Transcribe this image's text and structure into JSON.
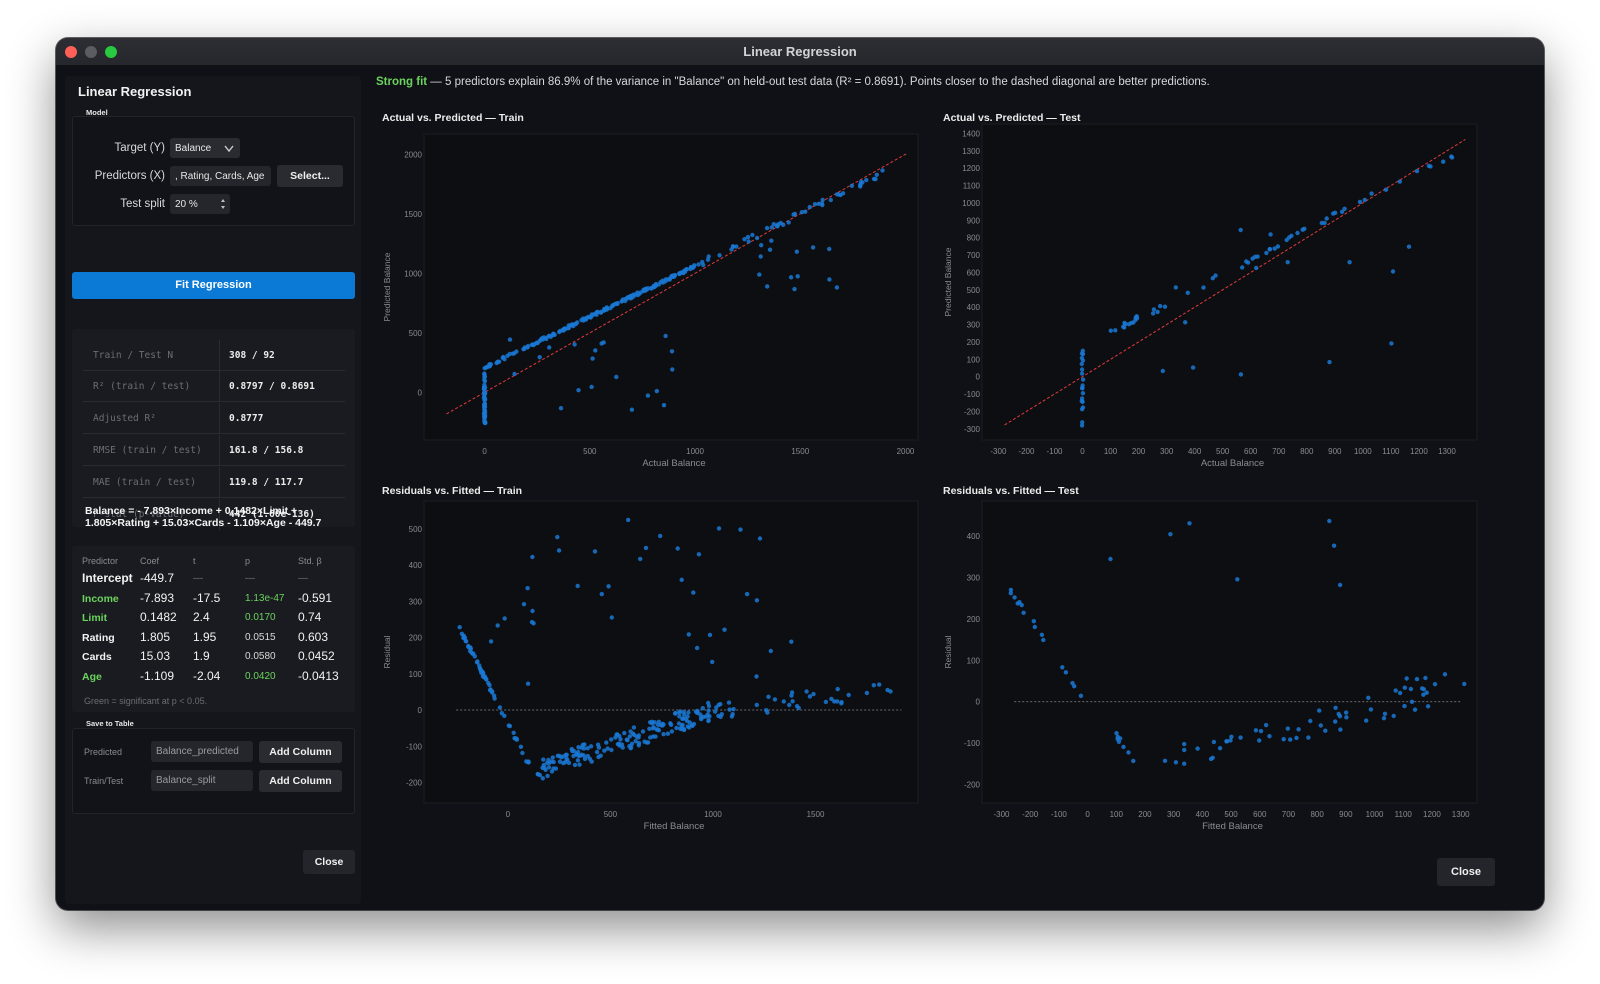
{
  "window": {
    "title": "Linear Regression"
  },
  "sidebar": {
    "title": "Linear Regression",
    "model_section": "Model",
    "target_label": "Target (Y)",
    "target_value": "Balance",
    "predictors_label": "Predictors (X)",
    "predictors_value": ", Rating, Cards, Age",
    "select_button": "Select...",
    "test_split_label": "Test split",
    "test_split_value": "20 %",
    "fit_button": "Fit Regression",
    "stats": [
      {
        "key": "Train / Test N",
        "value": "308 / 92"
      },
      {
        "key": "R² (train / test)",
        "value": "0.8797 / 0.8691"
      },
      {
        "key": "Adjusted R²",
        "value": "0.8777"
      },
      {
        "key": "RMSE (train / test)",
        "value": "161.8 / 156.8"
      },
      {
        "key": "MAE (train / test)",
        "value": "119.8 / 117.7"
      },
      {
        "key": "F-stat (p-value)",
        "value": "442 (1.60e-136)"
      }
    ],
    "equation": "Balance = - 7.893×Income + 0.1482×Limit + 1.805×Rating + 15.03×Cards - 1.109×Age - 449.7",
    "coef_headers": [
      "Predictor",
      "Coef",
      "t",
      "p",
      "Std. β"
    ],
    "coefficients": [
      {
        "name": "Intercept",
        "coef": "-449.7",
        "t": "—",
        "p": "—",
        "std": "—",
        "significant": false,
        "bold": true
      },
      {
        "name": "Income",
        "coef": "-7.893",
        "t": "-17.5",
        "p": "1.13e-47",
        "std": "-0.591",
        "significant": true
      },
      {
        "name": "Limit",
        "coef": "0.1482",
        "t": "2.4",
        "p": "0.0170",
        "std": "0.74",
        "significant": true
      },
      {
        "name": "Rating",
        "coef": "1.805",
        "t": "1.95",
        "p": "0.0515",
        "std": "0.603",
        "significant": false
      },
      {
        "name": "Cards",
        "coef": "15.03",
        "t": "1.9",
        "p": "0.0580",
        "std": "0.0452",
        "significant": false
      },
      {
        "name": "Age",
        "coef": "-1.109",
        "t": "-2.04",
        "p": "0.0420",
        "std": "-0.0413",
        "significant": true
      }
    ],
    "coef_footnote": "Green = significant at p < 0.05.",
    "save_section": "Save to Table",
    "save_rows": [
      {
        "label": "Predicted",
        "value": "Balance_predicted",
        "button": "Add Column"
      },
      {
        "label": "Train/Test",
        "value": "Balance_split",
        "button": "Add Column"
      }
    ],
    "close_button": "Close"
  },
  "main": {
    "summary_strong": "Strong fit",
    "summary_text": " — 5 predictors explain 86.9% of the variance in \"Balance\" on held-out test data (R² = 0.8691). Points closer to the dashed diagonal are better predictions.",
    "close_button": "Close"
  },
  "colors": {
    "point": "#1a78d4",
    "diagonal": "#e23b3b",
    "zero_line": "#8a8b92",
    "accent": "#0a7ad6",
    "significant": "#6bd35d"
  },
  "chart_data": [
    {
      "type": "scatter",
      "title": "Actual vs. Predicted — Train",
      "xlabel": "Actual Balance",
      "ylabel": "Predicted Balance",
      "xlim": [
        -250,
        2050
      ],
      "ylim": [
        -350,
        2120
      ],
      "xticks": [
        0,
        500,
        1000,
        1500,
        2000
      ],
      "yticks": [
        0,
        500,
        1000,
        1500,
        2000
      ],
      "reference": "diagonal",
      "seed": 11,
      "n": 308,
      "clusters": [
        {
          "kind": "vline",
          "x": 0,
          "y0": -270,
          "y1": 160,
          "n": 50
        },
        {
          "kind": "line",
          "x0": 0,
          "x1": 1000,
          "y0": 210,
          "y1": 1060,
          "jitter": 12,
          "n": 170
        },
        {
          "kind": "line",
          "x0": 1000,
          "x1": 1900,
          "y0": 1060,
          "y1": 1850,
          "jitter": 25,
          "n": 50
        },
        {
          "kind": "cloud",
          "x0": 50,
          "x1": 900,
          "y0": -180,
          "y1": 480,
          "n": 20
        },
        {
          "kind": "cloud",
          "x0": 1200,
          "x1": 1750,
          "y0": 750,
          "y1": 1300,
          "n": 14
        }
      ]
    },
    {
      "type": "scatter",
      "title": "Actual vs. Predicted — Test",
      "xlabel": "Actual Balance",
      "ylabel": "Predicted Balance",
      "xlim": [
        -330,
        1400
      ],
      "ylim": [
        -330,
        1420
      ],
      "xticks": [
        -300,
        -200,
        -100,
        0,
        100,
        200,
        300,
        400,
        500,
        600,
        700,
        800,
        900,
        1000,
        1100,
        1200,
        1300
      ],
      "yticks": [
        -300,
        -200,
        -100,
        0,
        100,
        200,
        300,
        400,
        500,
        600,
        700,
        800,
        900,
        1000,
        1100,
        1200,
        1300,
        1400
      ],
      "reference": "diagonal",
      "seed": 23,
      "n": 92,
      "clusters": [
        {
          "kind": "vline",
          "x": 0,
          "y0": -300,
          "y1": 180,
          "n": 20
        },
        {
          "kind": "line",
          "x0": 100,
          "x1": 1320,
          "y0": 250,
          "y1": 1280,
          "jitter": 20,
          "n": 58
        },
        {
          "kind": "cloud",
          "x0": 250,
          "x1": 1250,
          "y0": 0,
          "y1": 850,
          "n": 14
        }
      ]
    },
    {
      "type": "scatter",
      "title": "Residuals vs. Fitted — Train",
      "xlabel": "Fitted Balance",
      "ylabel": "Residual",
      "xlim": [
        -370,
        1990
      ],
      "ylim": [
        -240,
        560
      ],
      "xticks": [
        0,
        500,
        1000,
        1500
      ],
      "yticks": [
        -200,
        -100,
        0,
        100,
        200,
        300,
        400,
        500
      ],
      "reference": "zero",
      "seed": 37,
      "n": 308,
      "clusters": [
        {
          "kind": "line",
          "x0": -240,
          "x1": 120,
          "y0": 230,
          "y1": -170,
          "jitter": 6,
          "n": 60
        },
        {
          "kind": "line",
          "x0": 130,
          "x1": 1000,
          "y0": -170,
          "y1": 0,
          "jitter": 28,
          "n": 170
        },
        {
          "kind": "line",
          "x0": 1000,
          "x1": 1920,
          "y0": 0,
          "y1": 60,
          "jitter": 25,
          "n": 40
        },
        {
          "kind": "cloud",
          "x0": 50,
          "x1": 1250,
          "y0": 240,
          "y1": 530,
          "n": 25
        },
        {
          "kind": "cloud",
          "x0": -200,
          "x1": 1700,
          "y0": 60,
          "y1": 260,
          "n": 13
        }
      ]
    },
    {
      "type": "scatter",
      "title": "Residuals vs. Fitted — Test",
      "xlabel": "Fitted Balance",
      "ylabel": "Residual",
      "xlim": [
        -340,
        1350
      ],
      "ylim": [
        -230,
        470
      ],
      "xticks": [
        -300,
        -200,
        -100,
        0,
        100,
        200,
        300,
        400,
        500,
        600,
        700,
        800,
        900,
        1000,
        1100,
        1200,
        1300
      ],
      "yticks": [
        -200,
        -100,
        0,
        100,
        200,
        300,
        400
      ],
      "reference": "zero",
      "seed": 53,
      "n": 92,
      "clusters": [
        {
          "kind": "line",
          "x0": -300,
          "x1": 0,
          "y0": 300,
          "y1": 0,
          "jitter": 10,
          "n": 16
        },
        {
          "kind": "line",
          "x0": 100,
          "x1": 200,
          "y0": -80,
          "y1": -180,
          "jitter": 10,
          "n": 8
        },
        {
          "kind": "line",
          "x0": 250,
          "x1": 1320,
          "y0": -150,
          "y1": 40,
          "jitter": 35,
          "n": 54
        },
        {
          "kind": "cloud",
          "x0": 0,
          "x1": 900,
          "y0": 250,
          "y1": 440,
          "n": 7
        },
        {
          "kind": "cloud",
          "x0": 1050,
          "x1": 1320,
          "y0": 20,
          "y1": 70,
          "n": 7
        }
      ]
    }
  ]
}
